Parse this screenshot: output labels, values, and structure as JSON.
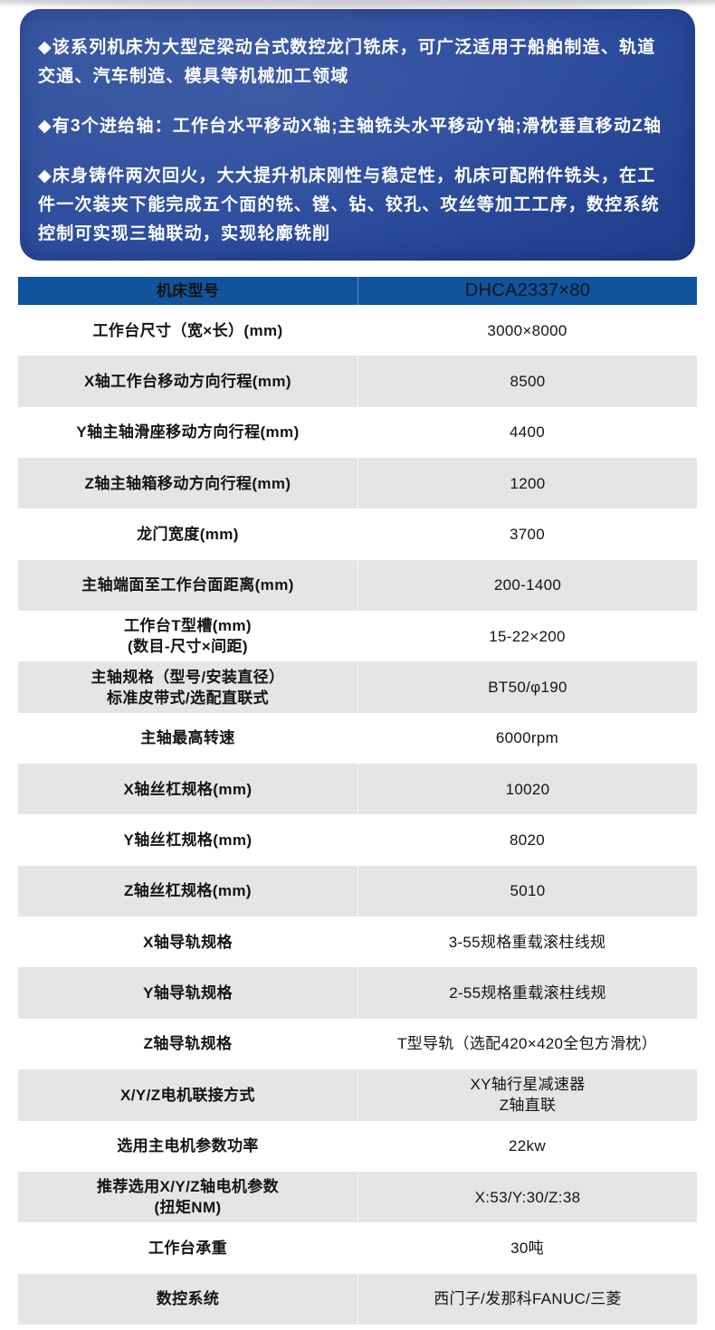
{
  "colors": {
    "panel_blue": "#2a4a9d",
    "header_blue": "#10549e",
    "row_gray": "#e5e5e5"
  },
  "intro": {
    "bullets": [
      "◆该系列机床为大型定梁动台式数控龙门铣床，可广泛适用于船舶制造、轨道交通、汽车制造、模具等机械加工领域",
      "◆有3个进给轴：工作台水平移动X轴;主轴铣头水平移动Y轴;滑枕垂直移动Z轴",
      "◆床身铸件两次回火，大大提升机床刚性与稳定性，机床可配附件铣头，在工件一次装夹下能完成五个面的铣、镗、钻、铰孔、攻丝等加工工序，数控系统控制可实现三轴联动，实现轮廓铣削"
    ]
  },
  "table": {
    "header": {
      "label": "机床型号",
      "value": "DHCA2337×80"
    },
    "rows": [
      {
        "label": "工作台尺寸（宽×长）(mm)",
        "value": "3000×8000"
      },
      {
        "label": "X轴工作台移动方向行程(mm)",
        "value": "8500"
      },
      {
        "label": "Y轴主轴滑座移动方向行程(mm)",
        "value": "4400"
      },
      {
        "label": "Z轴主轴箱移动方向行程(mm)",
        "value": "1200"
      },
      {
        "label": "龙门宽度(mm)",
        "value": "3700"
      },
      {
        "label": "主轴端面至工作台面距离(mm)",
        "value": "200-1400"
      },
      {
        "label": "工作台T型槽(mm)\n(数目-尺寸×间距)",
        "value": "15-22×200"
      },
      {
        "label": "主轴规格（型号/安装直径）\n标准皮带式/选配直联式",
        "value": "BT50/φ190"
      },
      {
        "label": "主轴最高转速",
        "value": "6000rpm"
      },
      {
        "label": "X轴丝杠规格(mm)",
        "value": "10020"
      },
      {
        "label": "Y轴丝杠规格(mm)",
        "value": "8020"
      },
      {
        "label": "Z轴丝杠规格(mm)",
        "value": "5010"
      },
      {
        "label": "X轴导轨规格",
        "value": "3-55规格重载滚柱线规"
      },
      {
        "label": "Y轴导轨规格",
        "value": "2-55规格重载滚柱线规"
      },
      {
        "label": "Z轴导轨规格",
        "value": "T型导轨（选配420×420全包方滑枕）"
      },
      {
        "label": "X/Y/Z电机联接方式",
        "value": "XY轴行星减速器\nZ轴直联"
      },
      {
        "label": "选用主电机参数功率",
        "value": "22kw"
      },
      {
        "label": "推荐选用X/Y/Z轴电机参数\n(扭矩NM)",
        "value": "X:53/Y:30/Z:38"
      },
      {
        "label": "工作台承重",
        "value": "30吨"
      },
      {
        "label": "数控系统",
        "value": "西门子/发那科FANUC/三菱"
      }
    ]
  }
}
